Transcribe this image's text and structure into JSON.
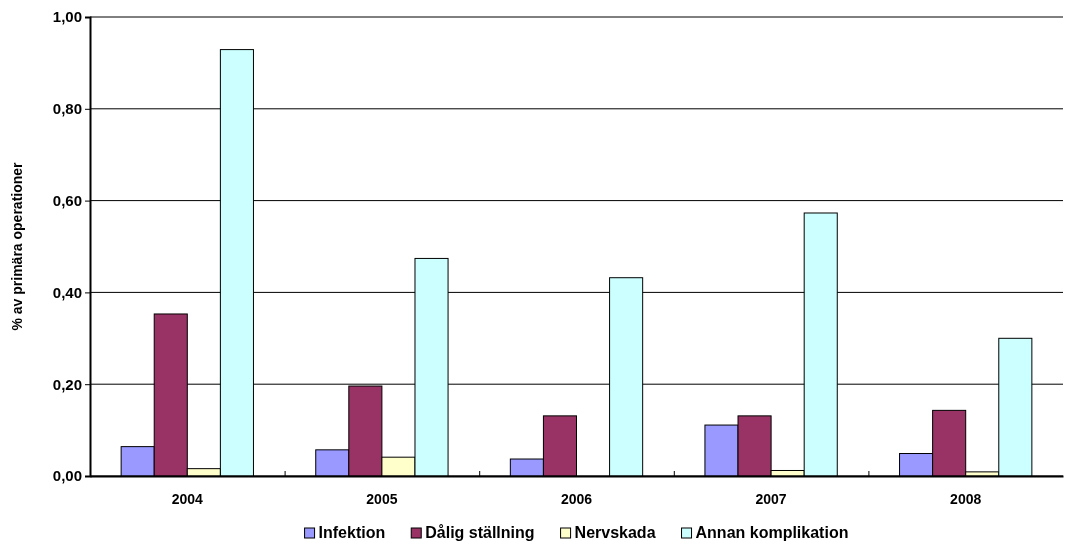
{
  "chart_data": {
    "type": "bar",
    "ylabel": "% av primära operationer",
    "categories": [
      "2004",
      "2005",
      "2006",
      "2007",
      "2008"
    ],
    "series": [
      {
        "name": "Infektion",
        "color": "#9999ff",
        "values": [
          0.064,
          0.057,
          0.037,
          0.111,
          0.049
        ]
      },
      {
        "name": "Dålig ställning",
        "color": "#993366",
        "values": [
          0.353,
          0.196,
          0.131,
          0.131,
          0.143
        ]
      },
      {
        "name": "Nervskada",
        "color": "#ffffcc",
        "values": [
          0.016,
          0.041,
          0,
          0.012,
          0.009
        ]
      },
      {
        "name": "Annan komplikation",
        "color": "#ccffff",
        "values": [
          0.929,
          0.474,
          0.432,
          0.573,
          0.3
        ]
      }
    ],
    "ylim": [
      0,
      1
    ],
    "yticks": [
      {
        "value": 0,
        "label": "0,00"
      },
      {
        "value": 0.2,
        "label": "0,20"
      },
      {
        "value": 0.4,
        "label": "0,40"
      },
      {
        "value": 0.6,
        "label": "0,60"
      },
      {
        "value": 0.8,
        "label": "0,80"
      },
      {
        "value": 1,
        "label": "1,00"
      }
    ],
    "grid": "y",
    "legend": "bottom"
  }
}
